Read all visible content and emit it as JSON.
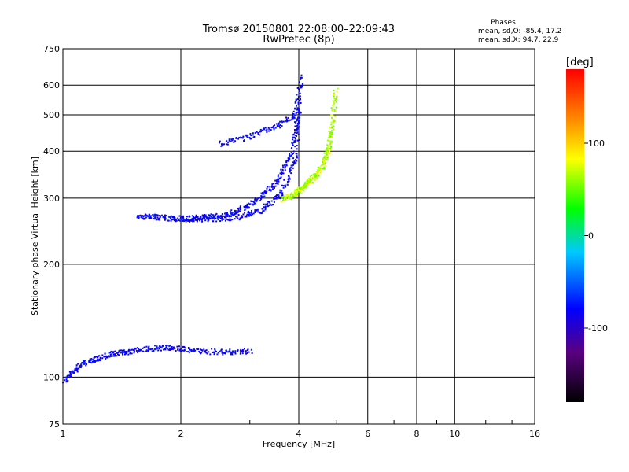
{
  "header": {
    "title": "Tromsø 20150801 22:08:00–22:09:43",
    "subtitle": "RwPretec (8p)",
    "stats_title": "Phases",
    "stats_line1": "mean, sd,O: -85.4, 17.2",
    "stats_line2": "mean, sd,X:  94.7, 22.9"
  },
  "chart_data": {
    "type": "scatter",
    "title": "Tromsø 20150801 22:08:00–22:09:43",
    "subtitle": "RwPretec (8p)",
    "xlabel": "Frequency [MHz]",
    "ylabel": "Stationary phase Virtual Height [km]",
    "x_scale": "log",
    "y_scale": "log",
    "xlim": [
      1,
      16
    ],
    "ylim": [
      75,
      750
    ],
    "x_ticks": [
      1,
      2,
      4,
      6,
      8,
      10,
      16
    ],
    "x_tick_labels": [
      "1",
      "2",
      "4",
      "6",
      "8",
      "10",
      "16"
    ],
    "y_ticks": [
      75,
      100,
      200,
      300,
      400,
      500,
      600,
      750
    ],
    "y_tick_labels": [
      "75",
      "100",
      "200",
      "300",
      "400",
      "500",
      "600",
      "750"
    ],
    "grid": true,
    "colorbar": {
      "label": "[deg]",
      "range": [
        -180,
        180
      ],
      "ticks": [
        -100,
        0,
        100
      ],
      "tick_labels": [
        "-100",
        "0",
        "100"
      ],
      "colormap": "rainbow"
    },
    "series": [
      {
        "mode": "O",
        "phase_mean": -85.4,
        "phase_sd": 17.2,
        "traces": [
          {
            "x": [
              1.0,
              1.1,
              1.2,
              1.35,
              1.5,
              1.7,
              1.9,
              2.2,
              2.6,
              3.0
            ],
            "y": [
              98,
              108,
              112,
              116,
              118,
              120,
              120,
              118,
              117,
              118
            ]
          },
          {
            "x": [
              1.55,
              1.7,
              1.9,
              2.1,
              2.4,
              2.8,
              3.2,
              3.6,
              3.9,
              4.0
            ],
            "y": [
              270,
              268,
              266,
              265,
              265,
              268,
              280,
              310,
              380,
              560
            ]
          },
          {
            "x": [
              2.0,
              2.3,
              2.6,
              2.9,
              3.2,
              3.5,
              3.8,
              4.0
            ],
            "y": [
              265,
              268,
              272,
              285,
              305,
              335,
              390,
              520
            ]
          },
          {
            "x": [
              2.5,
              3.0,
              3.5,
              3.9,
              4.05
            ],
            "y": [
              420,
              440,
              470,
              500,
              640
            ]
          }
        ]
      },
      {
        "mode": "X",
        "phase_mean": 94.7,
        "phase_sd": 22.9,
        "traces": [
          {
            "x": [
              3.6,
              3.8,
              4.0,
              4.2,
              4.4,
              4.6,
              4.75,
              4.85,
              4.95
            ],
            "y": [
              300,
              305,
              315,
              330,
              345,
              370,
              410,
              470,
              590
            ]
          }
        ]
      }
    ]
  }
}
